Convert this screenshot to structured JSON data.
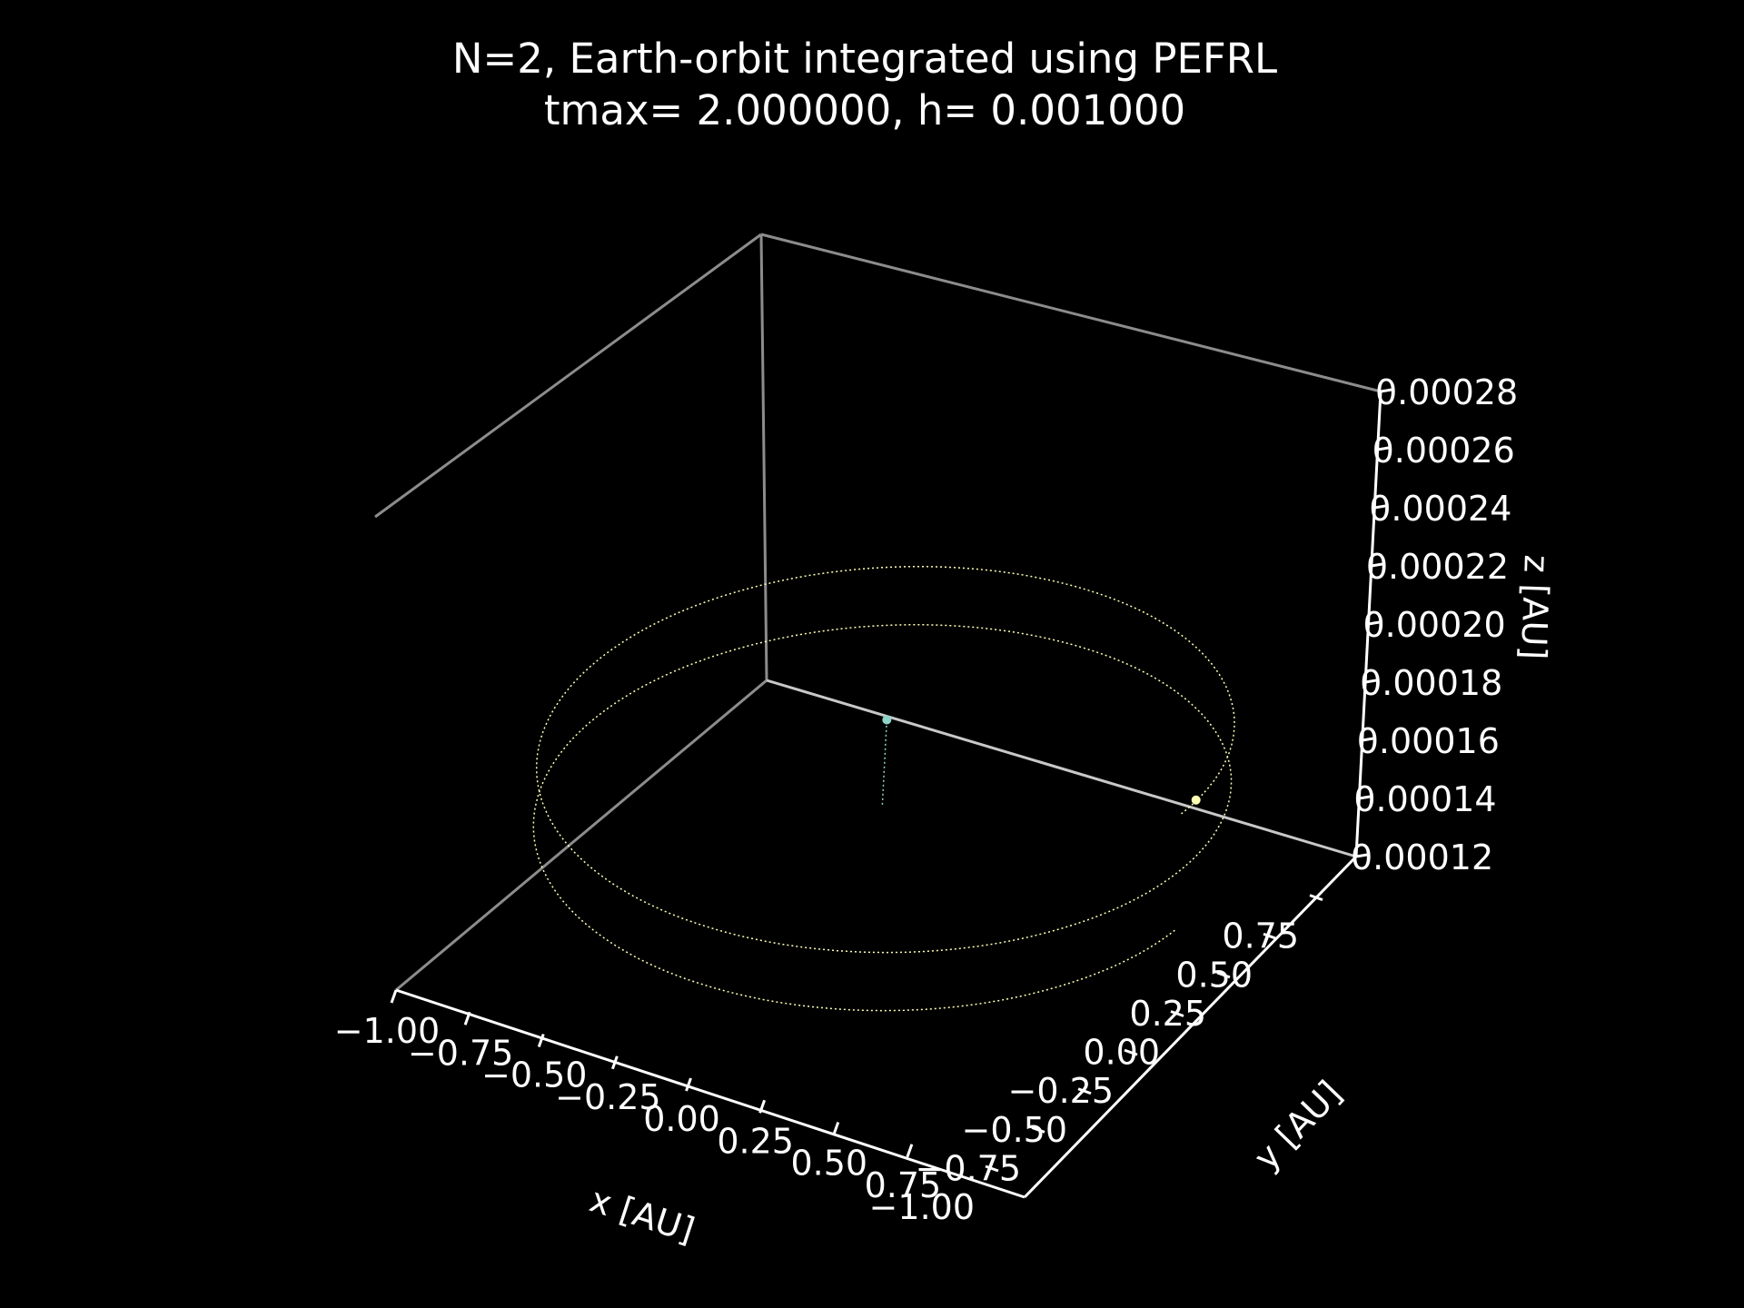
{
  "chart_data": {
    "type": "scatter",
    "projection": "3d",
    "title_line1": "N=2, Earth-orbit integrated using PEFRL",
    "title_line2": "tmax= 2.000000, h= 0.001000",
    "xlabel": "x [AU]",
    "ylabel": "y [AU]",
    "zlabel": "z [AU]",
    "xlim": [
      -1.0,
      1.0
    ],
    "ylim": [
      -1.0,
      1.0
    ],
    "zlim": [
      0.00012,
      0.00028
    ],
    "x_ticks": [
      "−1.00",
      "−0.75",
      "−0.50",
      "−0.25",
      "0.00",
      "0.25",
      "0.50",
      "0.75"
    ],
    "y_ticks": [
      "−1.00",
      "−0.75",
      "−0.50",
      "−0.25",
      "0.00",
      "0.25",
      "0.50",
      "0.75"
    ],
    "z_ticks": [
      "0.00012",
      "0.00014",
      "0.00016",
      "0.00018",
      "0.00020",
      "0.00022",
      "0.00024",
      "0.00026",
      "0.00028"
    ],
    "grid": false,
    "background": "#000000",
    "series": [
      {
        "kind": "marker",
        "x": 0.0,
        "y": 0.0,
        "z": 0.00019,
        "color": "#8dd3c7"
      },
      {
        "kind": "marker",
        "x": 0.68,
        "y": 0.62,
        "z": 0.00015,
        "color": "#ffffb3"
      },
      {
        "kind": "trajectory",
        "color": "#ffffb3",
        "orbits": 2,
        "radius": 1.0,
        "z_start": 0.000188,
        "z_end": 0.000148
      },
      {
        "kind": "trajectory",
        "color": "#8dd3c7",
        "note_z_from": 0.000188,
        "note_z_to": 0.00012
      }
    ]
  }
}
